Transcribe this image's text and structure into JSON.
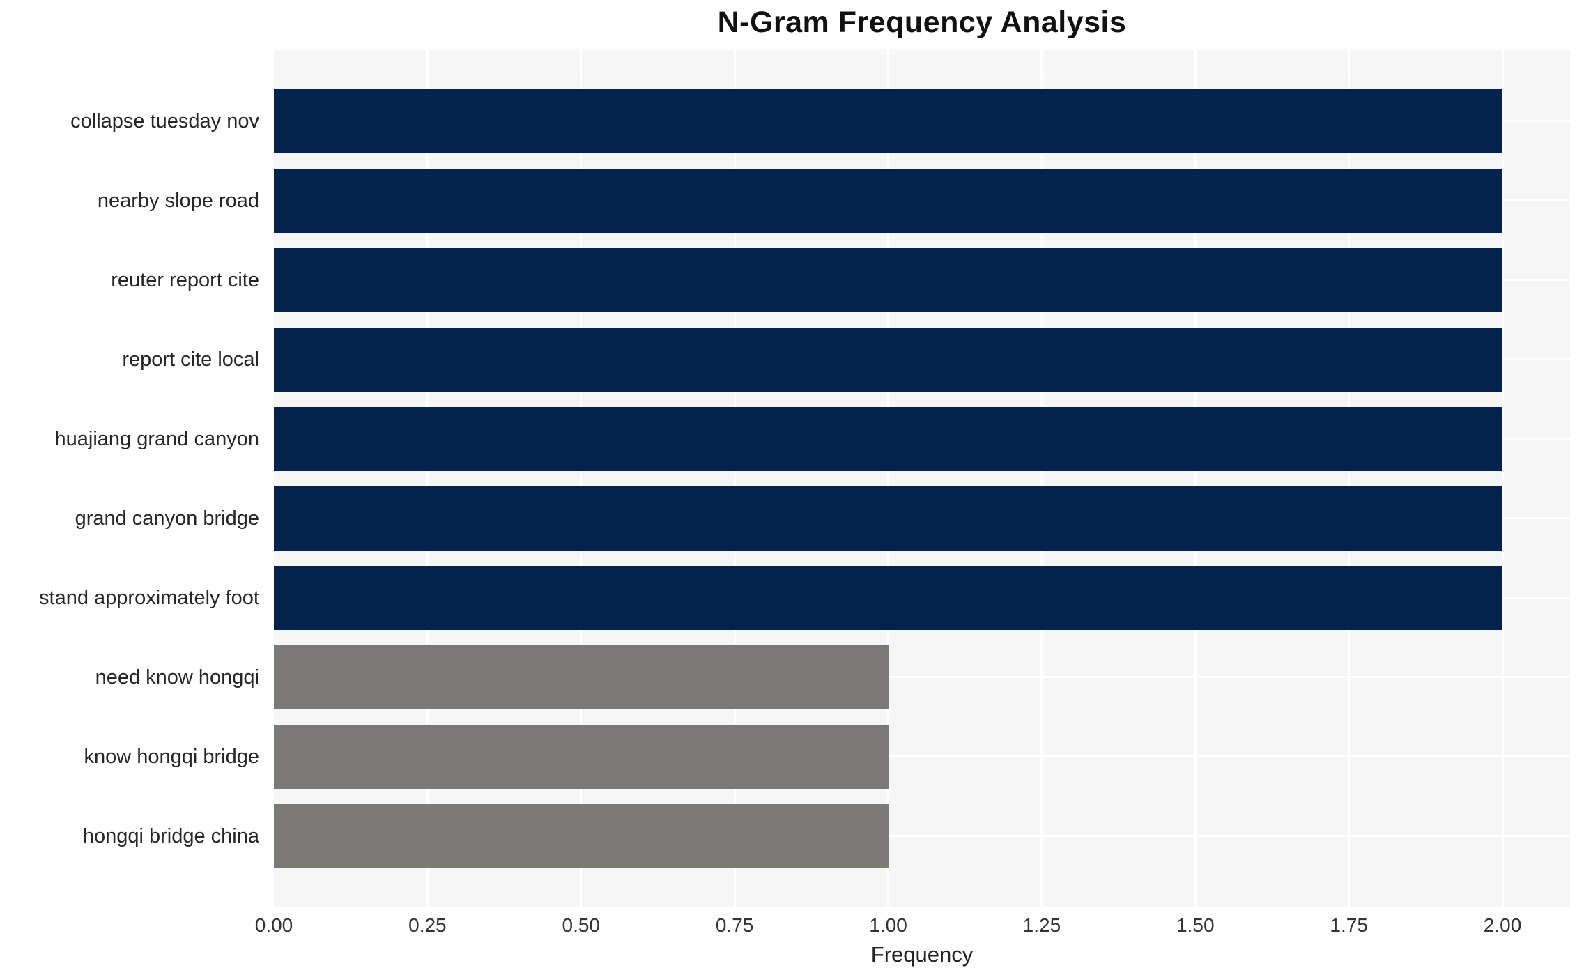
{
  "chart_data": {
    "type": "bar",
    "orientation": "horizontal",
    "title": "N-Gram Frequency Analysis",
    "xlabel": "Frequency",
    "ylabel": "",
    "categories": [
      "collapse tuesday nov",
      "nearby slope road",
      "reuter report cite",
      "report cite local",
      "huajiang grand canyon",
      "grand canyon bridge",
      "stand approximately foot",
      "need know hongqi",
      "know hongqi bridge",
      "hongqi bridge china"
    ],
    "values": [
      2,
      2,
      2,
      2,
      2,
      2,
      2,
      1,
      1,
      1
    ],
    "bar_colors": [
      "#03224c",
      "#03224c",
      "#03224c",
      "#03224c",
      "#03224c",
      "#03224c",
      "#03224c",
      "#7b7a77",
      "#7b7a77",
      "#7b7a77"
    ],
    "x_ticks": [
      "0.00",
      "0.25",
      "0.50",
      "0.75",
      "1.00",
      "1.25",
      "1.50",
      "1.75",
      "2.00"
    ],
    "xlim": [
      0,
      2.11
    ],
    "grid": "on",
    "legend": "none",
    "styles": {
      "plot_background": "#f6f6f7",
      "grid_color": "#ffffff",
      "color_frequency_2": "#03224c",
      "color_frequency_1": "#7b7a77",
      "text_color": "#262626",
      "title_color": "#111111"
    }
  }
}
